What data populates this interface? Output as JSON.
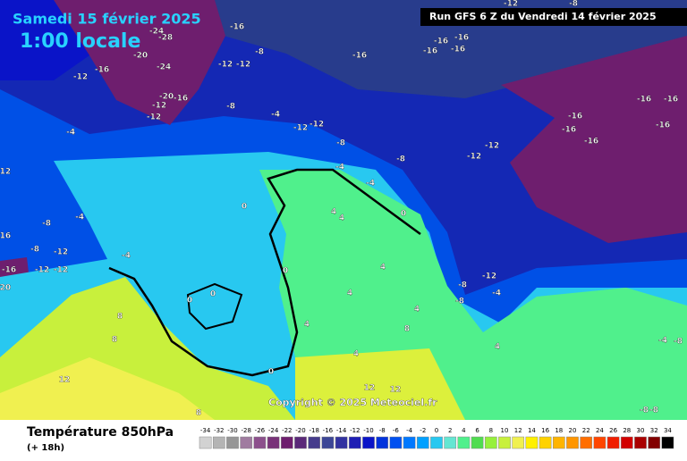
{
  "header": {
    "date": "Samedi 15 février 2025",
    "time": "1:00 locale",
    "run": "Run GFS 6 Z du Vendredi 14 février 2025",
    "copyright": "Copyright © 2025 Meteociel.fr"
  },
  "footer": {
    "title": "Température 850hPa",
    "lead": "(+ 18h)"
  },
  "legend": {
    "values": [
      -34,
      -32,
      -30,
      -28,
      -26,
      -24,
      -22,
      -20,
      -18,
      -16,
      -14,
      -12,
      -10,
      -8,
      -6,
      -4,
      -2,
      0,
      2,
      4,
      6,
      8,
      10,
      12,
      14,
      16,
      18,
      20,
      22,
      24,
      26,
      28,
      30,
      32,
      34
    ],
    "colors": [
      "#d2d2d2",
      "#b4b4b4",
      "#969696",
      "#a07ca0",
      "#8c508c",
      "#783278",
      "#6e1e6e",
      "#5a2878",
      "#463c8c",
      "#3c4696",
      "#3232a0",
      "#1e1eb4",
      "#0a14c8",
      "#0032dc",
      "#0050f0",
      "#0078ff",
      "#00a0ff",
      "#28c8f0",
      "#64e6d2",
      "#50f08c",
      "#50dc50",
      "#96f03c",
      "#c8f03c",
      "#f0f050",
      "#fff000",
      "#ffd200",
      "#ffb400",
      "#ff9600",
      "#ff6e00",
      "#ff4600",
      "#f01e00",
      "#d20000",
      "#aa0000",
      "#820000",
      "#000000"
    ]
  },
  "map": {
    "labels": [
      -24,
      -28,
      -20,
      -24,
      -16,
      -12,
      -20,
      -16,
      -12,
      -12,
      -8,
      -4,
      -12,
      -12,
      -8,
      -4,
      -8,
      -12,
      -12,
      -16,
      -16,
      -16,
      -16,
      -16,
      -16,
      -16,
      -16,
      -16,
      -16,
      -16,
      -12,
      -12,
      -8,
      -16,
      -12,
      -8,
      -4,
      -12,
      -4,
      -8,
      -8,
      -12,
      -12,
      -16,
      -12,
      -4,
      0,
      4,
      4,
      -4,
      0,
      0,
      0,
      0,
      4,
      4,
      4,
      8,
      4,
      4,
      0,
      8,
      8,
      12,
      8,
      12,
      12,
      -8,
      -12,
      -4,
      -8,
      4,
      -4,
      -8,
      -8,
      -8,
      -20,
      -16
    ]
  }
}
